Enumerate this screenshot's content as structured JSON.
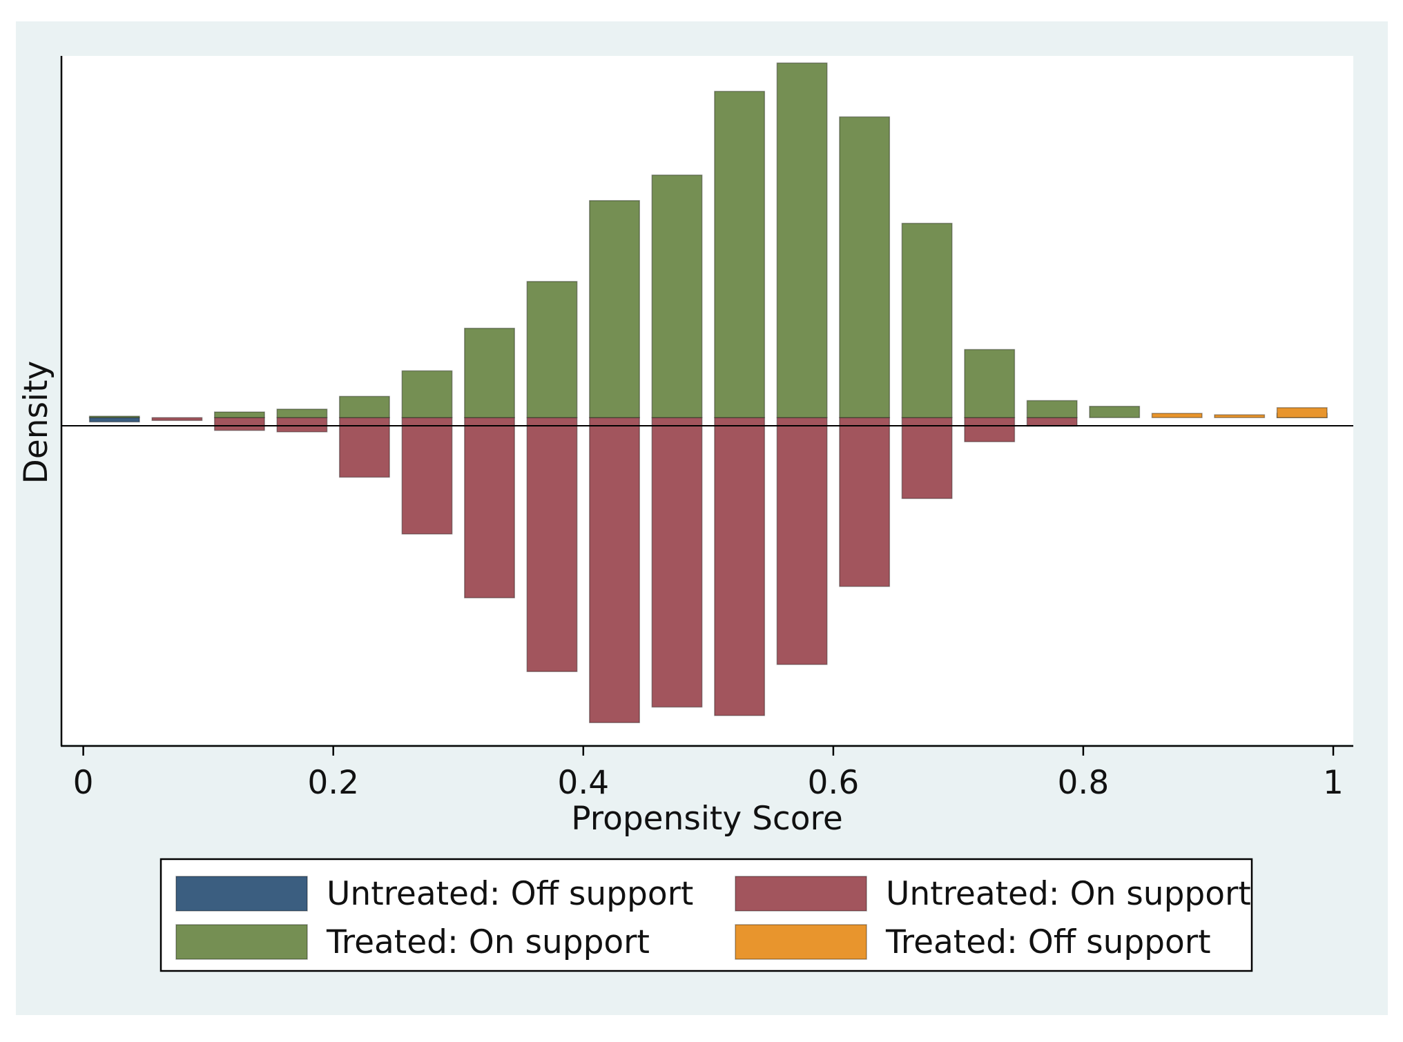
{
  "chart_data": {
    "type": "bar",
    "subtype": "mirrored-histogram",
    "title": "",
    "xlabel": "Propensity Score",
    "ylabel": "Density",
    "xlim": [
      -0.018,
      1.016
    ],
    "ylim": [
      -2.3,
      2.55
    ],
    "x_ticks": [
      "0",
      "0.2",
      "0.4",
      "0.6",
      "0.8",
      "1"
    ],
    "x_tick_values": [
      0,
      0.2,
      0.4,
      0.6,
      0.8,
      1
    ],
    "bin_width": 0.05,
    "bar_width": 0.04,
    "grid": false,
    "zero_line": true,
    "series": [
      {
        "name": "Untreated: Off support",
        "color": "#3b5e80",
        "side": "below",
        "x": [
          0.025
        ],
        "values": [
          0.03
        ]
      },
      {
        "name": "Untreated: On support",
        "color": "#a2555d",
        "side": "below",
        "x": [
          0.075,
          0.125,
          0.175,
          0.225,
          0.275,
          0.325,
          0.375,
          0.425,
          0.475,
          0.525,
          0.575,
          0.625,
          0.675,
          0.725,
          0.775
        ],
        "values": [
          0.02,
          0.09,
          0.1,
          0.42,
          0.82,
          1.27,
          1.79,
          2.15,
          2.04,
          2.1,
          1.74,
          1.19,
          0.57,
          0.17,
          0.06
        ]
      },
      {
        "name": "Treated: On support",
        "color": "#758f53",
        "side": "above",
        "x": [
          0.025,
          0.125,
          0.175,
          0.225,
          0.275,
          0.325,
          0.375,
          0.425,
          0.475,
          0.525,
          0.575,
          0.625,
          0.675,
          0.725,
          0.775,
          0.825,
          0.975
        ],
        "values": [
          0.01,
          0.04,
          0.06,
          0.15,
          0.33,
          0.63,
          0.96,
          1.53,
          1.71,
          2.3,
          2.5,
          2.12,
          1.37,
          0.48,
          0.12,
          0.08,
          0.03
        ]
      },
      {
        "name": "Treated: Off support",
        "color": "#e8952d",
        "side": "above",
        "x": [
          0.875,
          0.925,
          0.975
        ],
        "values": [
          0.03,
          0.02,
          0.07
        ]
      }
    ],
    "legend": {
      "placement": "bottom",
      "columns": 2,
      "order": [
        "Untreated: Off support",
        "Untreated: On support",
        "Treated: On support",
        "Treated: Off support"
      ]
    }
  }
}
